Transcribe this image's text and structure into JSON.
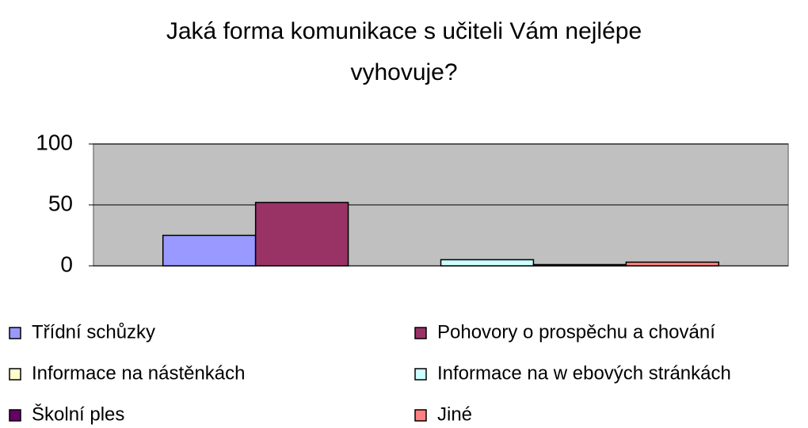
{
  "chart_data": {
    "type": "bar",
    "title": "Jaká forma komunikace s učiteli Vám nejlépe vyhovuje?",
    "categories": [
      null
    ],
    "series": [
      {
        "name": "Třídní schůzky",
        "color": "#9999ff",
        "values": [
          25
        ]
      },
      {
        "name": "Pohovory o prospěchu a chování",
        "color": "#993366",
        "values": [
          52
        ]
      },
      {
        "name": "Informace na nástěnkách",
        "color": "#ffffcc",
        "values": [
          0
        ]
      },
      {
        "name": "Informace na w ebových stránkách",
        "color": "#ccffff",
        "values": [
          5
        ]
      },
      {
        "name": "Školní ples",
        "color": "#660066",
        "values": [
          1
        ]
      },
      {
        "name": "Jiné",
        "color": "#ff8080",
        "values": [
          3
        ]
      }
    ],
    "ylim": [
      0,
      100
    ],
    "yticks": [
      0,
      50,
      100
    ],
    "grid": true,
    "legend": "bottom",
    "plot_background": "#c0c0c0"
  }
}
